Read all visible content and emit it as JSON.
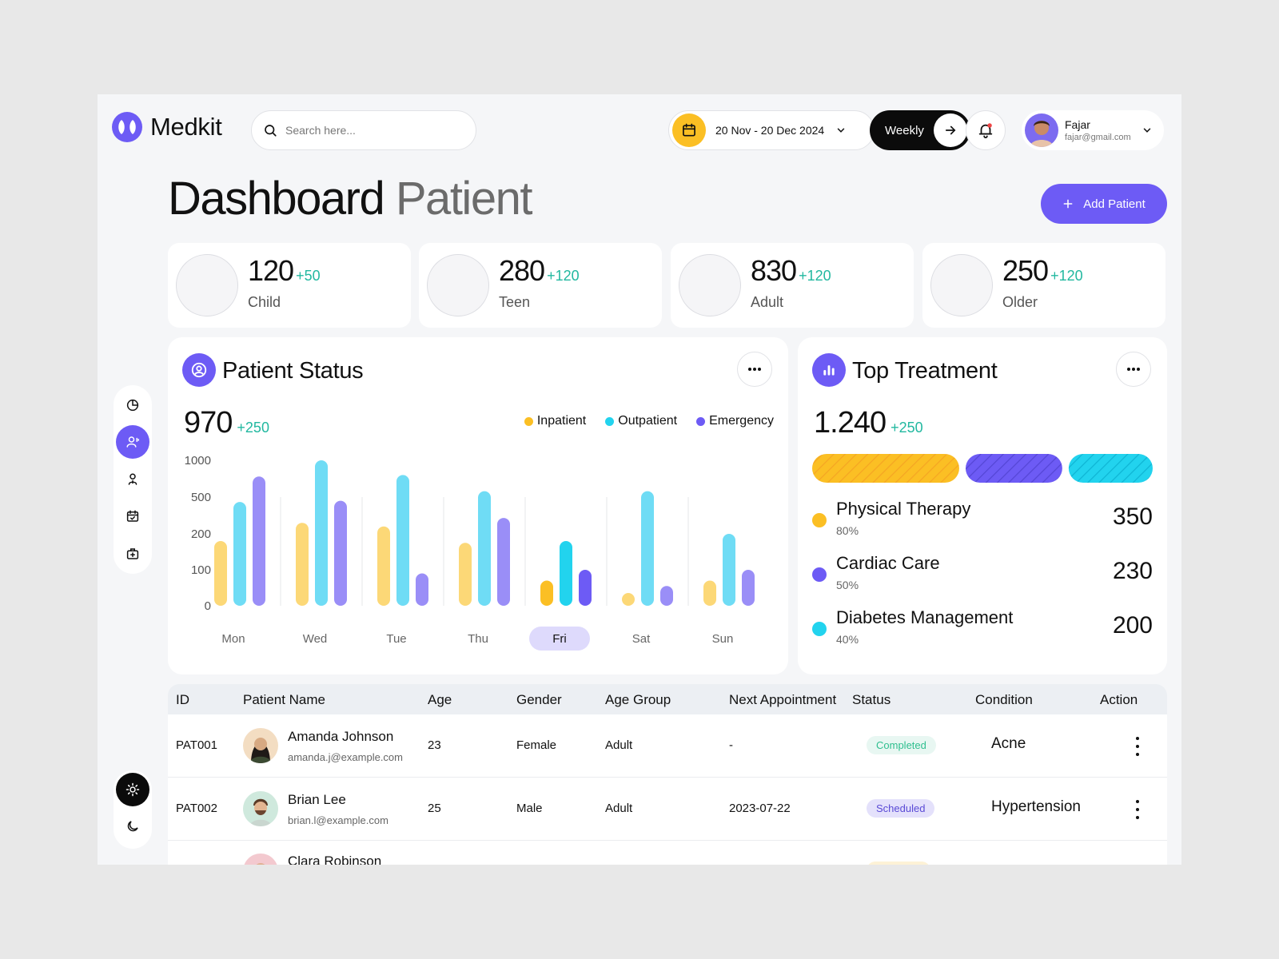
{
  "brand": {
    "name": "Medkit"
  },
  "search": {
    "placeholder": "Search here..."
  },
  "date_range": {
    "label": "20 Nov - 20 Dec 2024"
  },
  "period": {
    "label": "Weekly"
  },
  "user": {
    "name": "Fajar",
    "email": "fajar@gmail.com"
  },
  "page": {
    "title_main": "Dashboard",
    "title_sub": "Patient",
    "add_button": "Add Patient"
  },
  "stats": [
    {
      "value": "120",
      "delta": "+50",
      "label": "Child"
    },
    {
      "value": "280",
      "delta": "+120",
      "label": "Teen"
    },
    {
      "value": "830",
      "delta": "+120",
      "label": "Adult"
    },
    {
      "value": "250",
      "delta": "+120",
      "label": "Older"
    }
  ],
  "patient_status": {
    "title": "Patient Status",
    "total": "970",
    "delta": "+250"
  },
  "top_treatment": {
    "title": "Top Treatment",
    "total": "1.240",
    "delta": "+250",
    "items": [
      {
        "name": "Physical Therapy",
        "percent": "80%",
        "value": "350",
        "color": "#fbbf24"
      },
      {
        "name": "Cardiac Care",
        "percent": "50%",
        "value": "230",
        "color": "#6d5bf5"
      },
      {
        "name": "Diabetes Management",
        "percent": "40%",
        "value": "200",
        "color": "#22d3ee"
      }
    ],
    "shares": [
      350,
      230,
      200
    ]
  },
  "chart_data": {
    "type": "bar",
    "categories": [
      "Mon",
      "Wed",
      "Tue",
      "Thu",
      "Fri",
      "Sat",
      "Sun"
    ],
    "selected_category": "Fri",
    "yticks": [
      "1000",
      "500",
      "200",
      "100",
      "0"
    ],
    "ylim": [
      0,
      1000
    ],
    "scale": "piecewise",
    "series": [
      {
        "name": "Inpatient",
        "color": "#fbbf24",
        "values": [
          180,
          290,
          260,
          175,
          70,
          25,
          70
        ]
      },
      {
        "name": "Outpatient",
        "color": "#22d3ee",
        "values": [
          460,
          1000,
          800,
          580,
          180,
          580,
          200
        ]
      },
      {
        "name": "Emergency",
        "color": "#6d5bf5",
        "values": [
          780,
          470,
          90,
          330,
          100,
          55,
          100
        ]
      }
    ]
  },
  "table": {
    "columns": [
      "ID",
      "Patient Name",
      "Age",
      "Gender",
      "Age Group",
      "Next Appointment",
      "Status",
      "Condition",
      "Action"
    ],
    "rows": [
      {
        "id": "PAT001",
        "name": "Amanda Johnson",
        "email": "amanda.j@example.com",
        "age": "23",
        "gender": "Female",
        "age_group": "Adult",
        "next": "-",
        "status": "Completed",
        "status_kind": "completed",
        "condition": "Acne"
      },
      {
        "id": "PAT002",
        "name": "Brian Lee",
        "email": "brian.l@example.com",
        "age": "25",
        "gender": "Male",
        "age_group": "Adult",
        "next": "2023-07-22",
        "status": "Scheduled",
        "status_kind": "scheduled",
        "condition": "Hypertension"
      },
      {
        "id": "",
        "name": "Clara Robinson",
        "email": "",
        "age": "",
        "gender": "",
        "age_group": "",
        "next": "",
        "status": "",
        "status_kind": "pending",
        "condition": ""
      }
    ]
  },
  "icons": {
    "sidebar": [
      "pie-chart-icon",
      "patient-icon",
      "doctor-icon",
      "calendar-check-icon",
      "medical-kit-icon"
    ],
    "theme": [
      "sun-icon",
      "moon-icon"
    ]
  },
  "colors": {
    "accent": "#6d5bf5",
    "positive": "#22b8a0",
    "yellow": "#fbbf24",
    "cyan": "#22d3ee"
  }
}
